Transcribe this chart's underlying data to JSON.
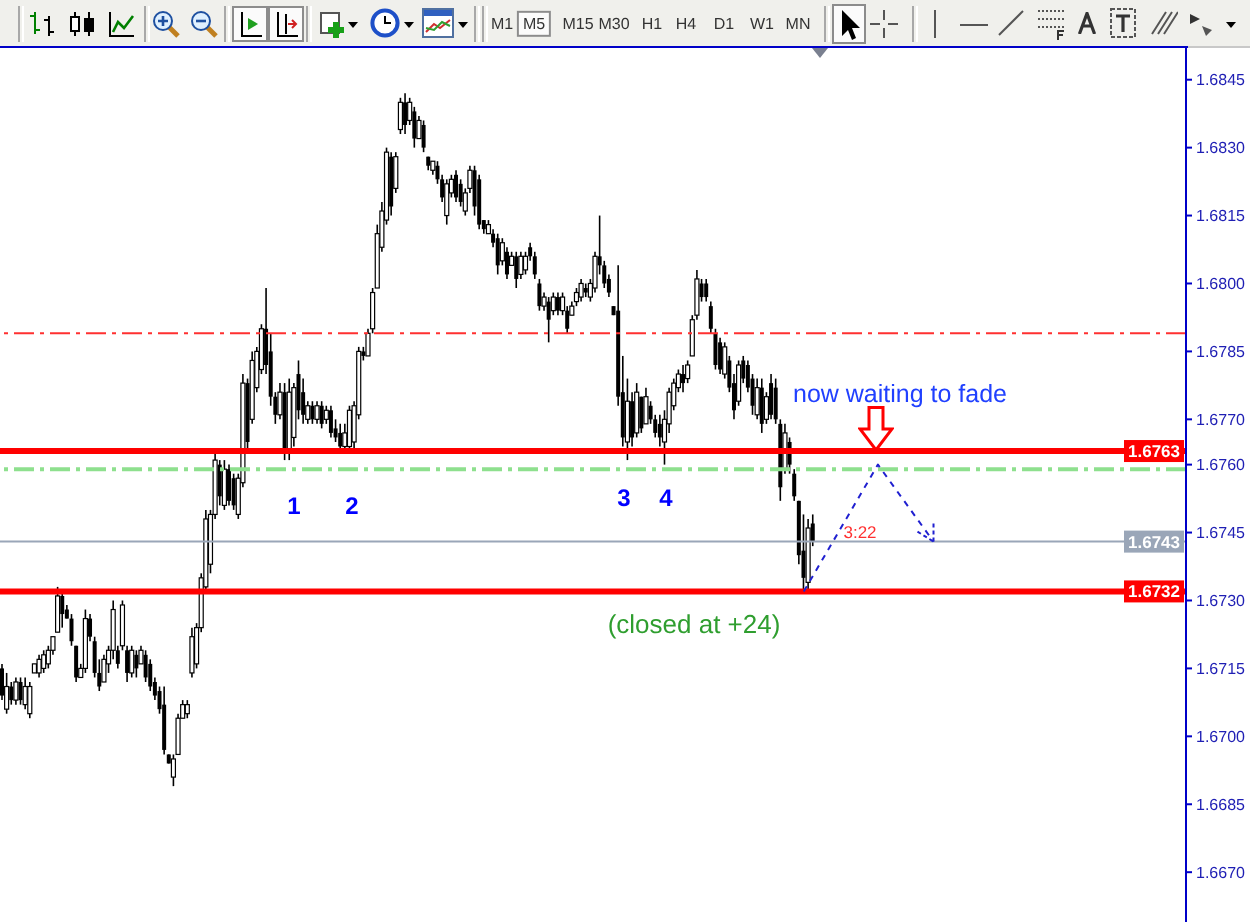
{
  "chart_data": {
    "type": "candlestick",
    "categories": [
      null,
      null,
      null,
      null,
      null,
      null,
      null,
      null,
      null,
      null,
      null,
      null,
      null,
      null,
      null,
      null,
      null,
      null,
      null,
      null,
      null,
      null,
      null,
      null,
      null,
      null,
      null,
      null,
      null,
      null,
      null,
      null,
      null,
      null,
      null,
      null,
      null,
      null,
      null,
      null,
      null,
      null,
      null,
      null,
      null,
      null,
      null,
      null,
      null,
      null,
      null,
      null,
      null,
      null,
      null,
      null,
      null,
      null,
      null,
      null,
      null,
      null,
      null,
      null,
      null,
      null,
      null,
      null,
      null,
      null,
      null,
      null,
      null,
      null,
      null,
      null,
      null,
      null,
      null,
      null,
      null,
      null,
      null,
      null,
      null,
      null,
      null,
      null,
      null,
      null,
      null,
      null,
      null,
      null,
      null,
      null,
      null,
      null,
      null,
      null,
      null,
      null,
      null,
      null,
      null,
      null,
      null,
      null,
      null,
      null,
      null,
      null,
      null,
      null,
      null,
      null,
      null,
      null,
      null,
      null,
      null,
      null,
      null,
      null,
      null,
      null,
      null,
      null,
      null,
      null,
      null,
      null,
      null,
      null,
      null,
      null,
      null,
      null,
      null,
      null,
      null,
      null,
      null,
      null,
      null,
      null,
      null,
      null,
      null,
      null,
      null,
      null,
      null,
      null,
      null,
      null,
      null,
      null,
      null,
      null,
      null,
      null,
      null,
      null,
      null,
      null,
      null,
      null,
      null,
      null,
      null,
      null,
      null,
      null,
      null,
      null,
      null,
      null,
      null,
      null,
      null,
      null,
      null,
      null,
      null,
      null,
      null,
      null,
      null,
      null,
      null,
      null,
      null,
      null,
      null,
      null,
      null,
      null,
      null,
      null,
      null,
      null,
      null,
      null,
      null,
      null,
      null,
      null,
      null,
      null,
      null,
      null,
      null,
      null,
      null,
      null,
      null,
      null,
      null,
      null,
      null,
      null,
      null,
      null,
      null,
      null,
      null,
      null,
      null,
      null,
      null,
      null,
      null,
      null,
      null,
      null,
      null,
      null,
      null,
      null,
      null,
      null,
      null,
      null,
      null,
      null,
      null,
      null,
      null,
      null,
      null,
      null,
      null,
      null,
      null,
      null
    ],
    "ohlc": [
      [
        1.6715,
        1.6716,
        1.6708,
        1.6709
      ],
      [
        1.6706,
        1.6714,
        1.6705,
        1.6711
      ],
      [
        1.6711,
        1.6712,
        1.6707,
        1.6708
      ],
      [
        1.6708,
        1.6713,
        1.6707,
        1.6712
      ],
      [
        1.6712,
        1.6713,
        1.6707,
        1.6708
      ],
      [
        1.6707,
        1.6713,
        1.6706,
        1.6711
      ],
      [
        1.6705,
        1.6712,
        1.6704,
        1.6711
      ],
      [
        1.6714,
        1.6716,
        1.6714,
        1.6716
      ],
      [
        1.6714,
        1.6718,
        1.6713,
        1.6717
      ],
      [
        1.6715,
        1.6719,
        1.6714,
        1.6718
      ],
      [
        1.6716,
        1.672,
        1.6715,
        1.6719
      ],
      [
        1.6719,
        1.6722,
        1.6718,
        1.6722
      ],
      [
        1.6723,
        1.6733,
        1.6723,
        1.6731
      ],
      [
        1.6731,
        1.6732,
        1.6724,
        1.6727
      ],
      [
        1.6728,
        1.6729,
        1.6726,
        1.6726
      ],
      [
        1.6726,
        1.6727,
        1.672,
        1.6721
      ],
      [
        1.672,
        1.672,
        1.6712,
        1.6713
      ],
      [
        1.6713,
        1.6716,
        1.6713,
        1.6715
      ],
      [
        1.6715,
        1.6728,
        1.6714,
        1.6726
      ],
      [
        1.6726,
        1.6727,
        1.6721,
        1.6722
      ],
      [
        1.6721,
        1.6722,
        1.6713,
        1.6714
      ],
      [
        1.6714,
        1.6717,
        1.671,
        1.6711
      ],
      [
        1.6712,
        1.6718,
        1.6712,
        1.6717
      ],
      [
        1.6716,
        1.672,
        1.6714,
        1.6719
      ],
      [
        1.6719,
        1.673,
        1.6717,
        1.6728
      ],
      [
        1.6719,
        1.672,
        1.6715,
        1.6716
      ],
      [
        1.672,
        1.673,
        1.6719,
        1.6729
      ],
      [
        1.6719,
        1.672,
        1.6712,
        1.6714
      ],
      [
        1.6714,
        1.672,
        1.6713,
        1.6719
      ],
      [
        1.6718,
        1.6719,
        1.6713,
        1.6715
      ],
      [
        1.6716,
        1.672,
        1.6716,
        1.6719
      ],
      [
        1.6718,
        1.6719,
        1.6712,
        1.6713
      ],
      [
        1.6716,
        1.6717,
        1.671,
        1.6711
      ],
      [
        1.6712,
        1.6713,
        1.6708,
        1.6709
      ],
      [
        1.671,
        1.6711,
        1.6705,
        1.6706
      ],
      [
        1.6707,
        1.6711,
        1.6696,
        1.6697
      ],
      [
        1.6696,
        1.6696,
        1.6694,
        1.6694
      ],
      [
        1.6691,
        1.6696,
        1.6689,
        1.6695
      ],
      [
        1.6696,
        1.6705,
        1.6696,
        1.6704
      ],
      [
        1.6704,
        1.6708,
        1.6704,
        1.6707
      ],
      [
        1.6705,
        1.6708,
        1.6704,
        1.6707
      ],
      [
        1.6714,
        1.6724,
        1.6713,
        1.6722
      ],
      [
        1.6716,
        1.6725,
        1.6715,
        1.6724
      ],
      [
        1.6724,
        1.6736,
        1.6723,
        1.6735
      ],
      [
        1.6733,
        1.675,
        1.6732,
        1.6748
      ],
      [
        1.6738,
        1.675,
        1.6736,
        1.6749
      ],
      [
        1.6749,
        1.6763,
        1.6748,
        1.6761
      ],
      [
        1.676,
        1.6761,
        1.6751,
        1.6753
      ],
      [
        1.6751,
        1.6761,
        1.675,
        1.6759
      ],
      [
        1.6759,
        1.676,
        1.6751,
        1.6752
      ],
      [
        1.6757,
        1.6758,
        1.675,
        1.6751
      ],
      [
        1.6749,
        1.6758,
        1.6748,
        1.6757
      ],
      [
        1.6756,
        1.678,
        1.6755,
        1.6778
      ],
      [
        1.6778,
        1.6779,
        1.6763,
        1.6765
      ],
      [
        1.677,
        1.6785,
        1.6769,
        1.6783
      ],
      [
        1.6777,
        1.6786,
        1.6776,
        1.6785
      ],
      [
        1.6781,
        1.6791,
        1.678,
        1.679
      ],
      [
        1.679,
        1.6799,
        1.678,
        1.6782
      ],
      [
        1.6785,
        1.6789,
        1.6773,
        1.6775
      ],
      [
        1.6775,
        1.6776,
        1.6769,
        1.6771
      ],
      [
        1.6771,
        1.6778,
        1.677,
        1.6776
      ],
      [
        1.6776,
        1.6778,
        1.6761,
        1.6763
      ],
      [
        1.6763,
        1.6779,
        1.6761,
        1.6776
      ],
      [
        1.6766,
        1.6778,
        1.6764,
        1.6777
      ],
      [
        1.678,
        1.6783,
        1.677,
        1.6772
      ],
      [
        1.6776,
        1.6779,
        1.6769,
        1.6771
      ],
      [
        1.677,
        1.6774,
        1.6769,
        1.6773
      ],
      [
        1.6773,
        1.6774,
        1.6769,
        1.677
      ],
      [
        1.677,
        1.6774,
        1.6769,
        1.6773
      ],
      [
        1.6773,
        1.6774,
        1.6768,
        1.6769
      ],
      [
        1.677,
        1.6773,
        1.6769,
        1.6772
      ],
      [
        1.6772,
        1.6773,
        1.6766,
        1.6767
      ],
      [
        1.6768,
        1.677,
        1.6765,
        1.6766
      ],
      [
        1.6767,
        1.6769,
        1.6763,
        1.6764
      ],
      [
        1.6764,
        1.6769,
        1.6763,
        1.6767
      ],
      [
        1.6764,
        1.6773,
        1.6763,
        1.6772
      ],
      [
        1.6765,
        1.6774,
        1.6763,
        1.6773
      ],
      [
        1.6771,
        1.6786,
        1.677,
        1.6785
      ],
      [
        1.6785,
        1.6786,
        1.6783,
        1.6784
      ],
      [
        1.6784,
        1.679,
        1.6784,
        1.6789
      ],
      [
        1.679,
        1.6799,
        1.6789,
        1.6798
      ],
      [
        1.6799,
        1.6813,
        1.6799,
        1.6811
      ],
      [
        1.6808,
        1.6818,
        1.6807,
        1.6816
      ],
      [
        1.6814,
        1.683,
        1.6813,
        1.6829
      ],
      [
        1.6828,
        1.6829,
        1.6815,
        1.6817
      ],
      [
        1.6821,
        1.6829,
        1.682,
        1.6828
      ],
      [
        1.6834,
        1.6841,
        1.6833,
        1.684
      ],
      [
        1.684,
        1.6842,
        1.6833,
        1.6835
      ],
      [
        1.6836,
        1.6841,
        1.6835,
        1.684
      ],
      [
        1.6838,
        1.6839,
        1.683,
        1.6832
      ],
      [
        1.6832,
        1.6837,
        1.6832,
        1.6836
      ],
      [
        1.6835,
        1.6836,
        1.6829,
        1.683
      ],
      [
        1.6828,
        1.6828,
        1.6825,
        1.6826
      ],
      [
        1.6825,
        1.6827,
        1.6824,
        1.6827
      ],
      [
        1.6826,
        1.6827,
        1.6822,
        1.6823
      ],
      [
        1.6823,
        1.6824,
        1.6818,
        1.6819
      ],
      [
        1.6815,
        1.6823,
        1.6813,
        1.6822
      ],
      [
        1.682,
        1.6824,
        1.6819,
        1.6823
      ],
      [
        1.6824,
        1.6825,
        1.6818,
        1.6819
      ],
      [
        1.6822,
        1.6823,
        1.6817,
        1.6818
      ],
      [
        1.6816,
        1.6821,
        1.6815,
        1.682
      ],
      [
        1.6821,
        1.6826,
        1.682,
        1.6825
      ],
      [
        1.6825,
        1.6826,
        1.6815,
        1.6817
      ],
      [
        1.6823,
        1.6824,
        1.6812,
        1.6813
      ],
      [
        1.6814,
        1.6814,
        1.6811,
        1.6812
      ],
      [
        1.6811,
        1.6814,
        1.6811,
        1.6813
      ],
      [
        1.6811,
        1.6812,
        1.6808,
        1.6809
      ],
      [
        1.681,
        1.6811,
        1.6802,
        1.6804
      ],
      [
        1.6805,
        1.681,
        1.6804,
        1.6809
      ],
      [
        1.6807,
        1.6808,
        1.6801,
        1.6802
      ],
      [
        1.6804,
        1.6807,
        1.6804,
        1.6806
      ],
      [
        1.6806,
        1.6807,
        1.6799,
        1.6801
      ],
      [
        1.6802,
        1.6807,
        1.6801,
        1.6806
      ],
      [
        1.6803,
        1.6807,
        1.6802,
        1.6806
      ],
      [
        1.6808,
        1.6809,
        1.6805,
        1.6806
      ],
      [
        1.6806,
        1.6807,
        1.6801,
        1.6802
      ],
      [
        1.68,
        1.6801,
        1.6794,
        1.6795
      ],
      [
        1.6795,
        1.6798,
        1.6794,
        1.6797
      ],
      [
        1.6796,
        1.6797,
        1.6787,
        1.6792
      ],
      [
        1.6794,
        1.6798,
        1.6793,
        1.6797
      ],
      [
        1.6797,
        1.6798,
        1.6793,
        1.6794
      ],
      [
        1.6794,
        1.6798,
        1.6793,
        1.6797
      ],
      [
        1.6794,
        1.6795,
        1.6789,
        1.679
      ],
      [
        1.6793,
        1.6796,
        1.6793,
        1.6795
      ],
      [
        1.6796,
        1.6799,
        1.6795,
        1.6798
      ],
      [
        1.6797,
        1.6801,
        1.6796,
        1.68
      ],
      [
        1.6799,
        1.68,
        1.6797,
        1.6798
      ],
      [
        1.6797,
        1.6801,
        1.6796,
        1.68
      ],
      [
        1.6799,
        1.6807,
        1.6798,
        1.6806
      ],
      [
        1.6806,
        1.6815,
        1.6802,
        1.6804
      ],
      [
        1.6804,
        1.6805,
        1.6799,
        1.68
      ],
      [
        1.6801,
        1.6802,
        1.6797,
        1.6798
      ],
      [
        1.6795,
        1.6795,
        1.6793,
        1.6793
      ],
      [
        1.6794,
        1.6804,
        1.6773,
        1.6775
      ],
      [
        1.6776,
        1.6784,
        1.6764,
        1.6766
      ],
      [
        1.6765,
        1.6779,
        1.6761,
        1.6774
      ],
      [
        1.6774,
        1.6776,
        1.6764,
        1.6766
      ],
      [
        1.6767,
        1.6778,
        1.6766,
        1.6776
      ],
      [
        1.6775,
        1.6775,
        1.6767,
        1.6768
      ],
      [
        1.6769,
        1.6777,
        1.6769,
        1.6775
      ],
      [
        1.6773,
        1.6774,
        1.6769,
        1.677
      ],
      [
        1.677,
        1.6771,
        1.6766,
        1.6767
      ],
      [
        1.6769,
        1.6771,
        1.6764,
        1.6766
      ],
      [
        1.6765,
        1.6772,
        1.676,
        1.677
      ],
      [
        1.6769,
        1.6777,
        1.6767,
        1.6776
      ],
      [
        1.6773,
        1.6779,
        1.6772,
        1.6778
      ],
      [
        1.6777,
        1.6781,
        1.6776,
        1.678
      ],
      [
        1.678,
        1.6782,
        1.6776,
        1.6778
      ],
      [
        1.6779,
        1.6783,
        1.6778,
        1.6782
      ],
      [
        1.6784,
        1.6793,
        1.6784,
        1.6792
      ],
      [
        1.6793,
        1.6803,
        1.6792,
        1.6801
      ],
      [
        1.68,
        1.6801,
        1.6796,
        1.6797
      ],
      [
        1.68,
        1.6801,
        1.6796,
        1.6797
      ],
      [
        1.6795,
        1.6796,
        1.6789,
        1.679
      ],
      [
        1.6789,
        1.679,
        1.6781,
        1.6782
      ],
      [
        1.6787,
        1.6788,
        1.678,
        1.6781
      ],
      [
        1.678,
        1.6787,
        1.6779,
        1.6786
      ],
      [
        1.6783,
        1.6784,
        1.6776,
        1.6777
      ],
      [
        1.6778,
        1.678,
        1.677,
        1.6772
      ],
      [
        1.6774,
        1.6783,
        1.6773,
        1.6782
      ],
      [
        1.6783,
        1.6784,
        1.6778,
        1.6779
      ],
      [
        1.6782,
        1.6783,
        1.6776,
        1.6777
      ],
      [
        1.6779,
        1.678,
        1.6771,
        1.6773
      ],
      [
        1.6771,
        1.6779,
        1.677,
        1.6777
      ],
      [
        1.6777,
        1.6779,
        1.6767,
        1.6769
      ],
      [
        1.677,
        1.6776,
        1.6769,
        1.6775
      ],
      [
        1.6778,
        1.678,
        1.677,
        1.6771
      ],
      [
        1.6777,
        1.6779,
        1.6769,
        1.677
      ],
      [
        1.6769,
        1.677,
        1.6752,
        1.6755
      ],
      [
        1.6759,
        1.6769,
        1.6758,
        1.6767
      ],
      [
        1.6765,
        1.6766,
        1.6758,
        1.676
      ],
      [
        1.6758,
        1.6759,
        1.6752,
        1.6753
      ],
      [
        1.6752,
        1.6752,
        1.6738,
        1.674
      ],
      [
        1.6741,
        1.6749,
        1.6732,
        1.6735
      ],
      [
        1.6734,
        1.6748,
        1.6732,
        1.6746
      ],
      [
        1.6747,
        1.6749,
        1.6742,
        1.6743
      ],
      null,
      null,
      null,
      null,
      null,
      null,
      null,
      null,
      null,
      null,
      null,
      null,
      null,
      null,
      null,
      null,
      null,
      null,
      null,
      null,
      null,
      null,
      null,
      null,
      null,
      null,
      null,
      null,
      null,
      null,
      null,
      null,
      null,
      null,
      null,
      null,
      null,
      null,
      null,
      null,
      null,
      null,
      null,
      null,
      null,
      null,
      null,
      null,
      null,
      null,
      null,
      null,
      null,
      null,
      null,
      null,
      null,
      null,
      null,
      null,
      null,
      null,
      null,
      null,
      null,
      null,
      null,
      null,
      null,
      null,
      null,
      null,
      null,
      null,
      null,
      null,
      null,
      null,
      null,
      null
    ],
    "color": "#000000",
    "ylim": [
      1.6659,
      1.6852
    ],
    "yticks": [
      1.6845,
      {
        "value": 1.683,
        "label": "1.6830"
      },
      1.6815,
      {
        "value": 1.68,
        "label": "1.6800"
      },
      1.6785,
      {
        "value": 1.677,
        "label": "1.6770"
      },
      {
        "value": 1.676,
        "label": "1.6760"
      },
      1.6745,
      {
        "value": 1.673,
        "label": "1.6730"
      },
      1.6715,
      {
        "value": 1.67,
        "label": "1.6700"
      },
      1.6685,
      {
        "value": 1.667,
        "label": "1.6670"
      }
    ],
    "tick_labels": "y",
    "series": [
      {
        "type": "line",
        "color": "#2020d0",
        "line_style": "dashed",
        "values": [
          null,
          null,
          null,
          null,
          null,
          null,
          null,
          null,
          null,
          null,
          null,
          null,
          null,
          null,
          null,
          null,
          null,
          null,
          null,
          null,
          null,
          null,
          null,
          null,
          null,
          null,
          null,
          null,
          null,
          null,
          null,
          null,
          null,
          null,
          null,
          null,
          null,
          null,
          null,
          null,
          null,
          null,
          null,
          null,
          null,
          null,
          null,
          null,
          null,
          null,
          null,
          null,
          null,
          null,
          null,
          null,
          null,
          null,
          null,
          null,
          null,
          null,
          null,
          null,
          null,
          null,
          null,
          null,
          null,
          null,
          null,
          null,
          null,
          null,
          null,
          null,
          null,
          null,
          null,
          null,
          null,
          null,
          null,
          null,
          null,
          null,
          null,
          null,
          null,
          null,
          null,
          null,
          null,
          null,
          null,
          null,
          null,
          null,
          null,
          null,
          null,
          null,
          null,
          null,
          null,
          null,
          null,
          null,
          null,
          null,
          null,
          null,
          null,
          null,
          null,
          null,
          null,
          null,
          null,
          null,
          null,
          null,
          null,
          null,
          null,
          null,
          null,
          null,
          null,
          null,
          null,
          null,
          null,
          null,
          null,
          null,
          null,
          null,
          null,
          null,
          null,
          null,
          null,
          null,
          null,
          null,
          null,
          null,
          null,
          null,
          null,
          null,
          null,
          null,
          null,
          null,
          null,
          null,
          null,
          null,
          null,
          null,
          null,
          null,
          null,
          null,
          null,
          null,
          null,
          null,
          null,
          null,
          null,
          1.6732,
          null,
          null,
          null,
          null,
          null,
          null,
          null,
          null,
          null,
          null,
          null,
          null,
          null,
          null,
          null,
          1.676,
          null,
          null,
          null,
          null,
          null,
          null,
          null,
          null,
          null,
          null,
          null,
          1.6743,
          null,
          null,
          null,
          null,
          null,
          null,
          null,
          null,
          null,
          null,
          null,
          null,
          null,
          null,
          null,
          null,
          null,
          null,
          null,
          null,
          null,
          null,
          null,
          null,
          null,
          null,
          null,
          null,
          null,
          null,
          null,
          null,
          null,
          null,
          null,
          null,
          null,
          null,
          null,
          null,
          null,
          null,
          null,
          null,
          null,
          null,
          null,
          null,
          null,
          null,
          null,
          null,
          null,
          null
        ]
      }
    ],
    "ref_lines": [
      {
        "axis": "y",
        "value": 1.6789,
        "color": "#ff3030",
        "line_style": "dashed"
      },
      {
        "axis": "y",
        "value": 1.6759,
        "color": "#8ee08e",
        "line_style": "dashed"
      },
      {
        "axis": "y",
        "value": 1.6763,
        "label": "1.6763",
        "color": "#ff0000"
      },
      {
        "axis": "y",
        "value": 1.6732,
        "label": "1.6732",
        "color": "#ff0000"
      },
      {
        "axis": "y",
        "value": 1.6743,
        "label": "1.6743",
        "color": "#9aa6b8"
      }
    ],
    "annotations": [
      "1",
      "2",
      "3",
      "4",
      "now waiting to fade",
      "(closed at +24)",
      "3:22",
      "M1",
      "M5",
      "M15",
      "M30",
      "H1",
      "H4",
      "D1",
      "W1",
      "MN"
    ]
  }
}
